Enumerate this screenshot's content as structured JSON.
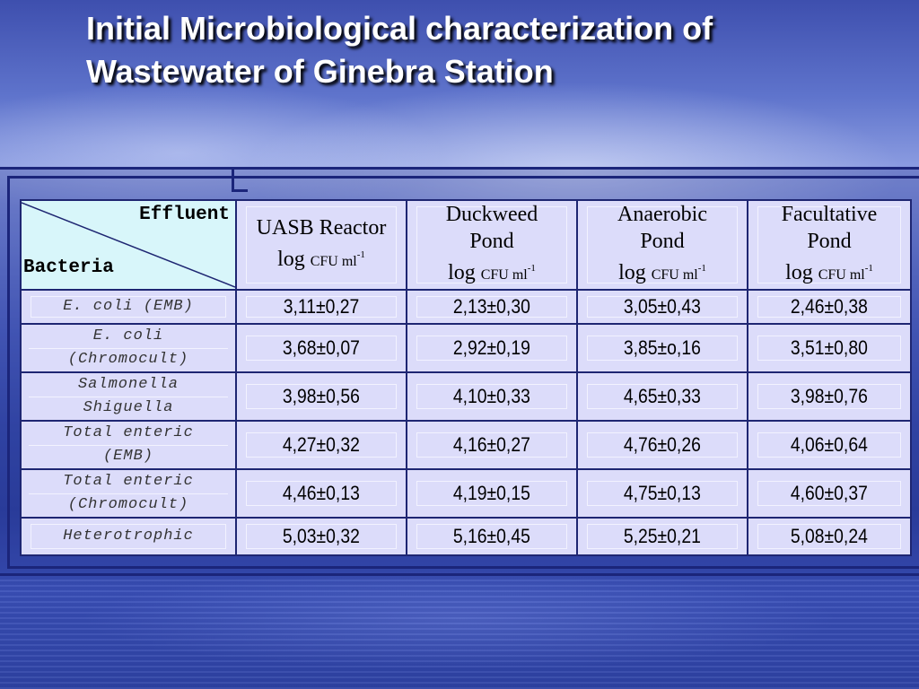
{
  "title": "Initial Microbiological  characterization of Wastewater of Ginebra Station",
  "table": {
    "corner_top": "Effluent",
    "corner_bottom": "Bacteria",
    "columns": [
      {
        "name": "UASB Reactor",
        "unit_prefix": "log",
        "unit": "CFU ml",
        "unit_exp": "-1"
      },
      {
        "name": "Duckweed Pond",
        "unit_prefix": "log",
        "unit": "CFU ml",
        "unit_exp": "-1"
      },
      {
        "name": "Anaerobic Pond",
        "unit_prefix": "log",
        "unit": "CFU ml",
        "unit_exp": "-1"
      },
      {
        "name": "Facultative Pond",
        "unit_prefix": "log",
        "unit": "CFU ml",
        "unit_exp": "-1"
      }
    ],
    "rows": [
      {
        "label": "E. coli (EMB)",
        "values": [
          "3,11±0,27",
          "2,13±0,30",
          "3,05±0,43",
          "2,46±0,38"
        ]
      },
      {
        "label": "E. coli (Chromocult)",
        "values": [
          "3,68±0,07",
          "2,92±0,19",
          "3,85±o,16",
          "3,51±0,80"
        ]
      },
      {
        "label": "Salmonella Shiguella",
        "values": [
          "3,98±0,56",
          "4,10±0,33",
          "4,65±0,33",
          "3,98±0,76"
        ]
      },
      {
        "label": "Total enteric (EMB)",
        "values": [
          "4,27±0,32",
          "4,16±0,27",
          "4,76±0,26",
          "4,06±0,64"
        ]
      },
      {
        "label": "Total enteric (Chromocult)",
        "values": [
          "4,46±0,13",
          "4,19±0,15",
          "4,75±0,13",
          "4,60±0,37"
        ]
      },
      {
        "label": "Heterotrophic",
        "values": [
          "5,03±0,32",
          "5,16±0,45",
          "5,25±0,21",
          "5,08±0,24"
        ]
      }
    ]
  }
}
